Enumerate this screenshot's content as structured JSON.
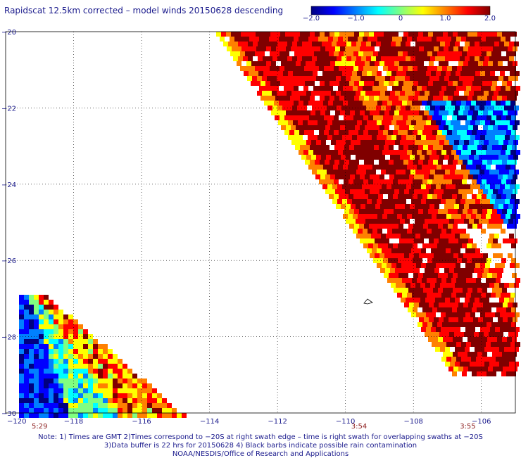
{
  "chart_data": {
    "type": "heatmap",
    "title": "Rapidscat 12.5km corrected – model winds 20150628 descending",
    "colorbar": {
      "range": [
        -2.0,
        2.0
      ],
      "tick_labels": [
        "−2.0",
        "−1.0",
        "0",
        "1.0",
        "2.0"
      ],
      "tick_values": [
        -2.0,
        -1.0,
        0,
        1.0,
        2.0
      ],
      "colors": [
        "#000080",
        "#0000ff",
        "#0080ff",
        "#00ffff",
        "#80ff80",
        "#ffff00",
        "#ff8000",
        "#ff0000",
        "#800000"
      ]
    },
    "xlim": [
      -120,
      -105
    ],
    "ylim": [
      -30,
      -20
    ],
    "x_ticks": [
      -120,
      -118,
      -116,
      -114,
      -112,
      -110,
      -108,
      -106
    ],
    "x_tick_labels": [
      "−120",
      "−118",
      "−116",
      "−114",
      "−112",
      "−110",
      "−108",
      "−106"
    ],
    "y_ticks": [
      -20,
      -22,
      -24,
      -26,
      -28,
      -30
    ],
    "y_tick_labels": [
      "−20",
      "−22",
      "−24",
      "−26",
      "−28",
      "−30"
    ],
    "time_labels": [
      {
        "lon": -119.0,
        "text": "5:29"
      },
      {
        "lon": -109.6,
        "text": "3:54"
      },
      {
        "lon": -106.4,
        "text": "3:55"
      }
    ],
    "grid": true,
    "swaths": [
      {
        "name": "east",
        "lat_top": -20,
        "lat_bottom": -29.0,
        "left_edge_lon_top": -113.8,
        "left_edge_lon_bottom": -106.8,
        "right_edge_lon": -105
      },
      {
        "name": "west",
        "lat_top": -26.9,
        "lat_bottom": -30.0,
        "left_edge_lon": -119.6,
        "right_edge_lon_top": -118.8,
        "right_edge_lon_bottom": -114.8
      }
    ],
    "island": {
      "lon": -109.2,
      "lat": -27.1
    }
  },
  "notes": [
    "Note: 1) Times are GMT 2)Times correspond to −20S at right swath edge – time is right swath for overlapping swaths at −20S",
    "3)Data buffer is 22 hrs for 20150628 4) Black barbs indicate possible rain contamination",
    "NOAA/NESDIS/Office of Research and Applications"
  ]
}
